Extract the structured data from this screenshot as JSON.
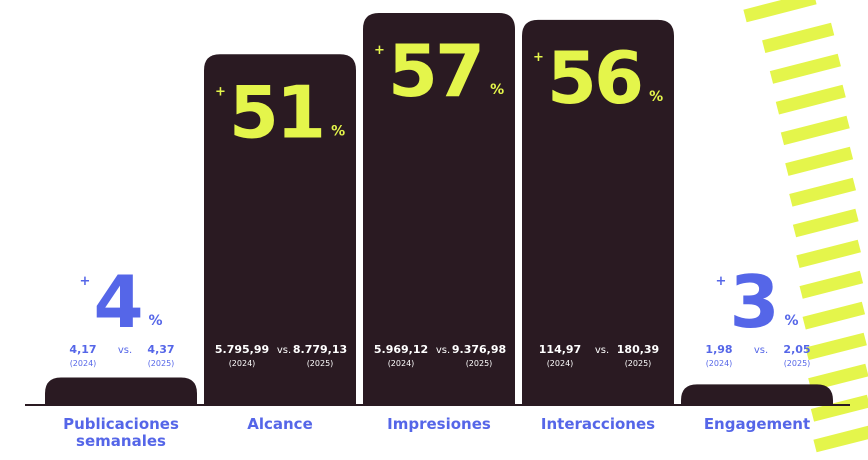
{
  "chart_data": {
    "type": "bar",
    "categories": [
      [
        "Publicaciones",
        "semanales"
      ],
      [
        "Alcance"
      ],
      [
        "Impresiones"
      ],
      [
        "Interacciones"
      ],
      [
        "Engagement"
      ]
    ],
    "values": [
      4,
      51,
      57,
      56,
      3
    ],
    "prefix": "+",
    "suffix": "%",
    "comparisons": [
      {
        "before": "4,17",
        "after": "4,37"
      },
      {
        "before": "5.795,99",
        "after": "8.779,13"
      },
      {
        "before": "5.969,12",
        "after": "9.376,98"
      },
      {
        "before": "114,97",
        "after": "180,39"
      },
      {
        "before": "1,98",
        "after": "2,05"
      }
    ],
    "versus": "vs.",
    "before_label": "(2024)",
    "after_label": "(2025)",
    "ylim": [
      0,
      57
    ],
    "color": "#2a1a22",
    "accent": "#e4f54b",
    "label_color": "#5566e8"
  }
}
